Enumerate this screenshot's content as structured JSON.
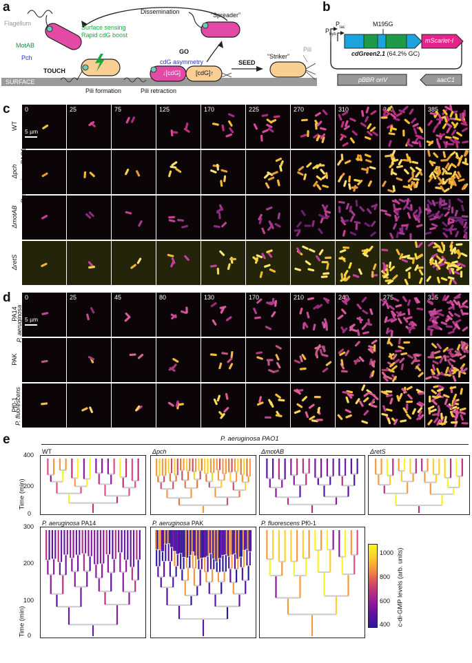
{
  "panel_labels": {
    "a": "a",
    "b": "b",
    "c": "c",
    "d": "d",
    "e": "e"
  },
  "panel_a": {
    "flagellum": "Flagellum",
    "motab": "MotAB",
    "pch": "Pch",
    "touch": "TOUCH",
    "surface_sensing": "Surface sensing",
    "rapid_boost": "Rapid cdG boost",
    "dissemination": "Dissemination",
    "spreader": "“Spreader”",
    "go": "GO",
    "asymmetry": "cdG asymmetry",
    "cdg_low": "↓[cdG]",
    "cdg_high": "[cdG]↑",
    "seed": "SEED",
    "striker": "“Striker”",
    "pili": "Pili",
    "surface": "SURFACE",
    "pili_formation": "Pili formation",
    "pili_retraction": "Pili retraction"
  },
  "panel_b": {
    "p_lac": "P",
    "p_lac_sub": "lac",
    "p_hyb": "P",
    "p_hyb_sub": "hyb",
    "mutation": "M195G",
    "gene": "cdGreen2.1",
    "gc": "(64.2% GC)",
    "reporter": "mScarlet-I",
    "ori": "pBBR oriV",
    "resistance": "aacC1"
  },
  "panel_c": {
    "species": "P. aeruginosa",
    "strain": "PAO1",
    "scalebar": "5 µm",
    "times": [
      "0",
      "25",
      "75",
      "125",
      "170",
      "225",
      "270",
      "310",
      "340",
      "385"
    ],
    "rows": [
      {
        "label": "WT",
        "kind": "wt"
      },
      {
        "label": "Δpch",
        "kind": "pch"
      },
      {
        "label": "ΔmotAB",
        "kind": "mot"
      },
      {
        "label": "ΔretS",
        "kind": "ret"
      }
    ]
  },
  "panel_d": {
    "scalebar": "5 µm",
    "times": [
      "0",
      "25",
      "45",
      "80",
      "130",
      "170",
      "210",
      "240",
      "275",
      "325"
    ],
    "species1": "P. aeruginosa",
    "species2": "P. fluorescens",
    "rows": [
      {
        "label": "PA14",
        "kind": "pa14"
      },
      {
        "label": "PAK",
        "kind": "pak"
      },
      {
        "label": "Pf0-1",
        "kind": "pf"
      }
    ]
  },
  "panel_e": {
    "top_header": "P. aeruginosa PAO1",
    "ylabel": "Time (min)",
    "top_ticks": [
      "400",
      "200",
      "0"
    ],
    "bottom_ticks": [
      "300",
      "200",
      "100",
      "0"
    ],
    "top_trees": [
      "WT",
      "Δpch",
      "ΔmotAB",
      "ΔretS"
    ],
    "bottom_trees": [
      {
        "species": "P. aeruginosa",
        "strain": "PA14"
      },
      {
        "species": "P. aeruginosa",
        "strain": "PAK"
      },
      {
        "species": "P. fluorescens",
        "strain": "Pf0-1"
      }
    ],
    "colorbar_label": "c-di-GMP levels (arb. units)",
    "colorbar_ticks": [
      "1000",
      "800",
      "600",
      "400"
    ],
    "colormap": [
      "#2a1a9a",
      "#5a12a0",
      "#8a1a9c",
      "#b8307e",
      "#e0585a",
      "#f59a3a",
      "#fad12a",
      "#f9f520"
    ]
  }
}
